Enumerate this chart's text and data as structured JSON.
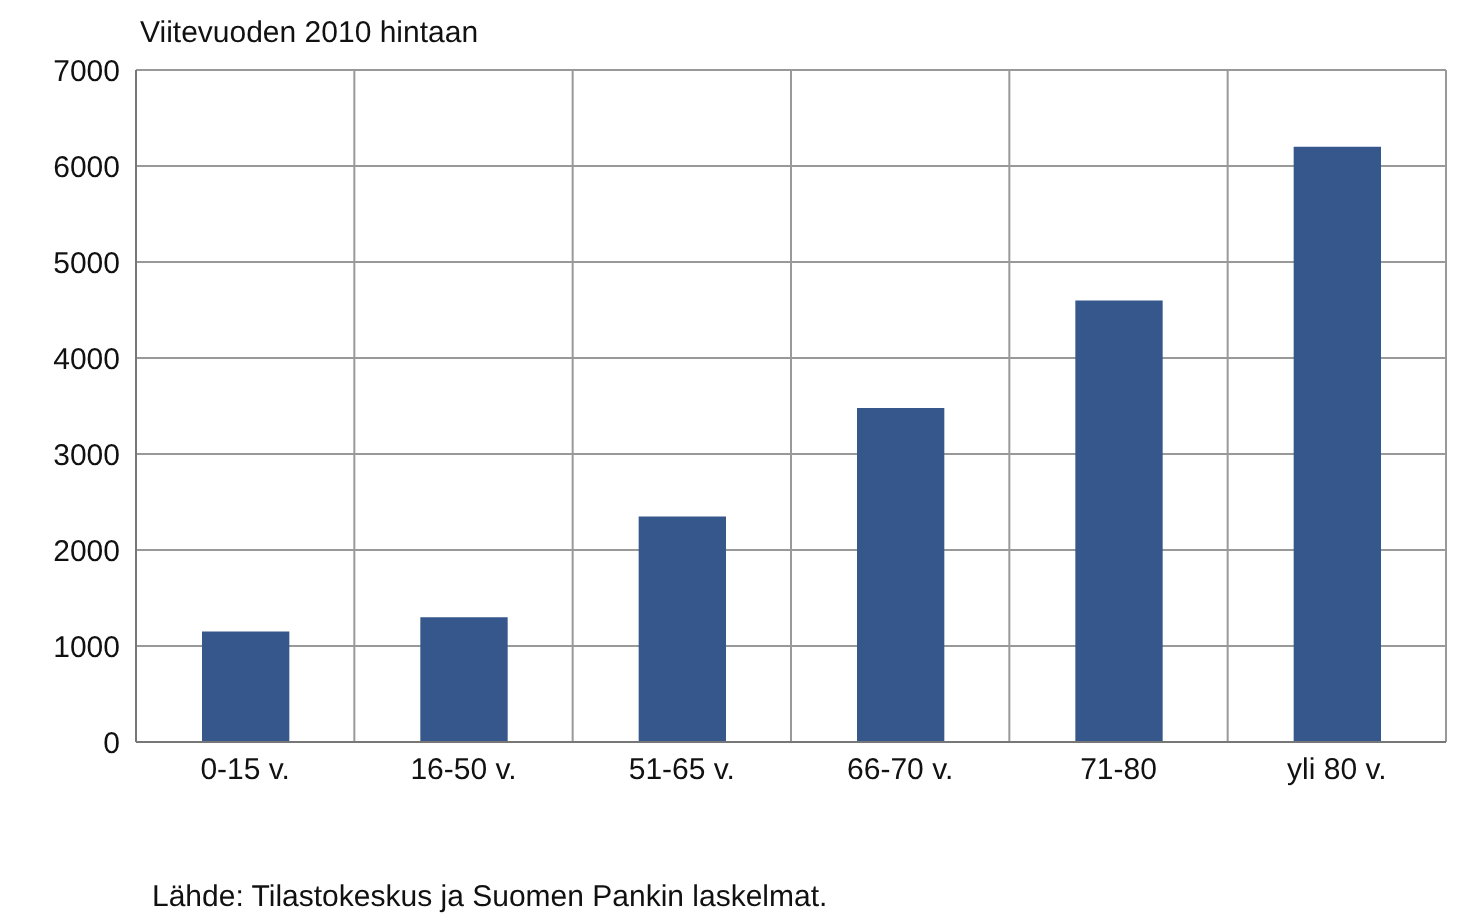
{
  "chart_data": {
    "type": "bar",
    "ylabel": "Viitevuoden 2010 hintaan",
    "categories": [
      "0-15 v.",
      "16-50 v.",
      "51-65 v.",
      "66-70 v.",
      "71-80",
      "yli 80 v."
    ],
    "values": [
      1150,
      1300,
      2350,
      3480,
      4600,
      6200
    ],
    "color": "#36578c",
    "ylim": [
      0,
      7000
    ],
    "yticks": [
      0,
      1000,
      2000,
      3000,
      4000,
      5000,
      6000,
      7000
    ],
    "grid": true,
    "annotations": [
      "Lähde: Tilastokeskus ja Suomen Pankin laskelmat."
    ]
  }
}
